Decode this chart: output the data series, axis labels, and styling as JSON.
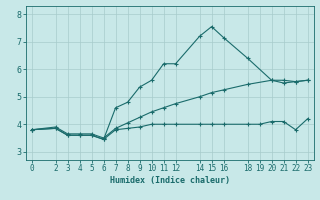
{
  "title": "",
  "xlabel": "Humidex (Indice chaleur)",
  "ylabel": "",
  "background_color": "#c8e8e8",
  "grid_color": "#a8cccc",
  "line_color": "#1a6b6b",
  "xlim": [
    -0.5,
    23.5
  ],
  "ylim": [
    2.7,
    8.3
  ],
  "yticks": [
    3,
    4,
    5,
    6,
    7,
    8
  ],
  "xticks": [
    0,
    2,
    3,
    4,
    5,
    6,
    7,
    8,
    9,
    10,
    11,
    12,
    14,
    15,
    16,
    18,
    19,
    20,
    21,
    22,
    23
  ],
  "series": [
    {
      "x": [
        0,
        2,
        3,
        4,
        5,
        6,
        7,
        8,
        9,
        10,
        11,
        12,
        14,
        15,
        16,
        18,
        20,
        21,
        22,
        23
      ],
      "y": [
        3.8,
        3.85,
        3.6,
        3.6,
        3.6,
        3.45,
        4.6,
        4.8,
        5.35,
        5.6,
        6.2,
        6.2,
        7.2,
        7.55,
        7.15,
        6.4,
        5.6,
        5.5,
        5.55,
        5.6
      ]
    },
    {
      "x": [
        0,
        2,
        3,
        4,
        5,
        6,
        7,
        8,
        9,
        10,
        11,
        12,
        14,
        15,
        16,
        18,
        19,
        20,
        21,
        22,
        23
      ],
      "y": [
        3.8,
        3.85,
        3.6,
        3.6,
        3.6,
        3.45,
        3.8,
        3.85,
        3.9,
        4.0,
        4.0,
        4.0,
        4.0,
        4.0,
        4.0,
        4.0,
        4.0,
        4.1,
        4.1,
        3.8,
        4.2
      ]
    },
    {
      "x": [
        0,
        2,
        3,
        4,
        5,
        6,
        7,
        8,
        9,
        10,
        11,
        12,
        14,
        15,
        16,
        18,
        20,
        21,
        22,
        23
      ],
      "y": [
        3.8,
        3.9,
        3.65,
        3.65,
        3.65,
        3.5,
        3.85,
        4.05,
        4.25,
        4.45,
        4.6,
        4.75,
        5.0,
        5.15,
        5.25,
        5.45,
        5.6,
        5.6,
        5.55,
        5.6
      ]
    }
  ]
}
